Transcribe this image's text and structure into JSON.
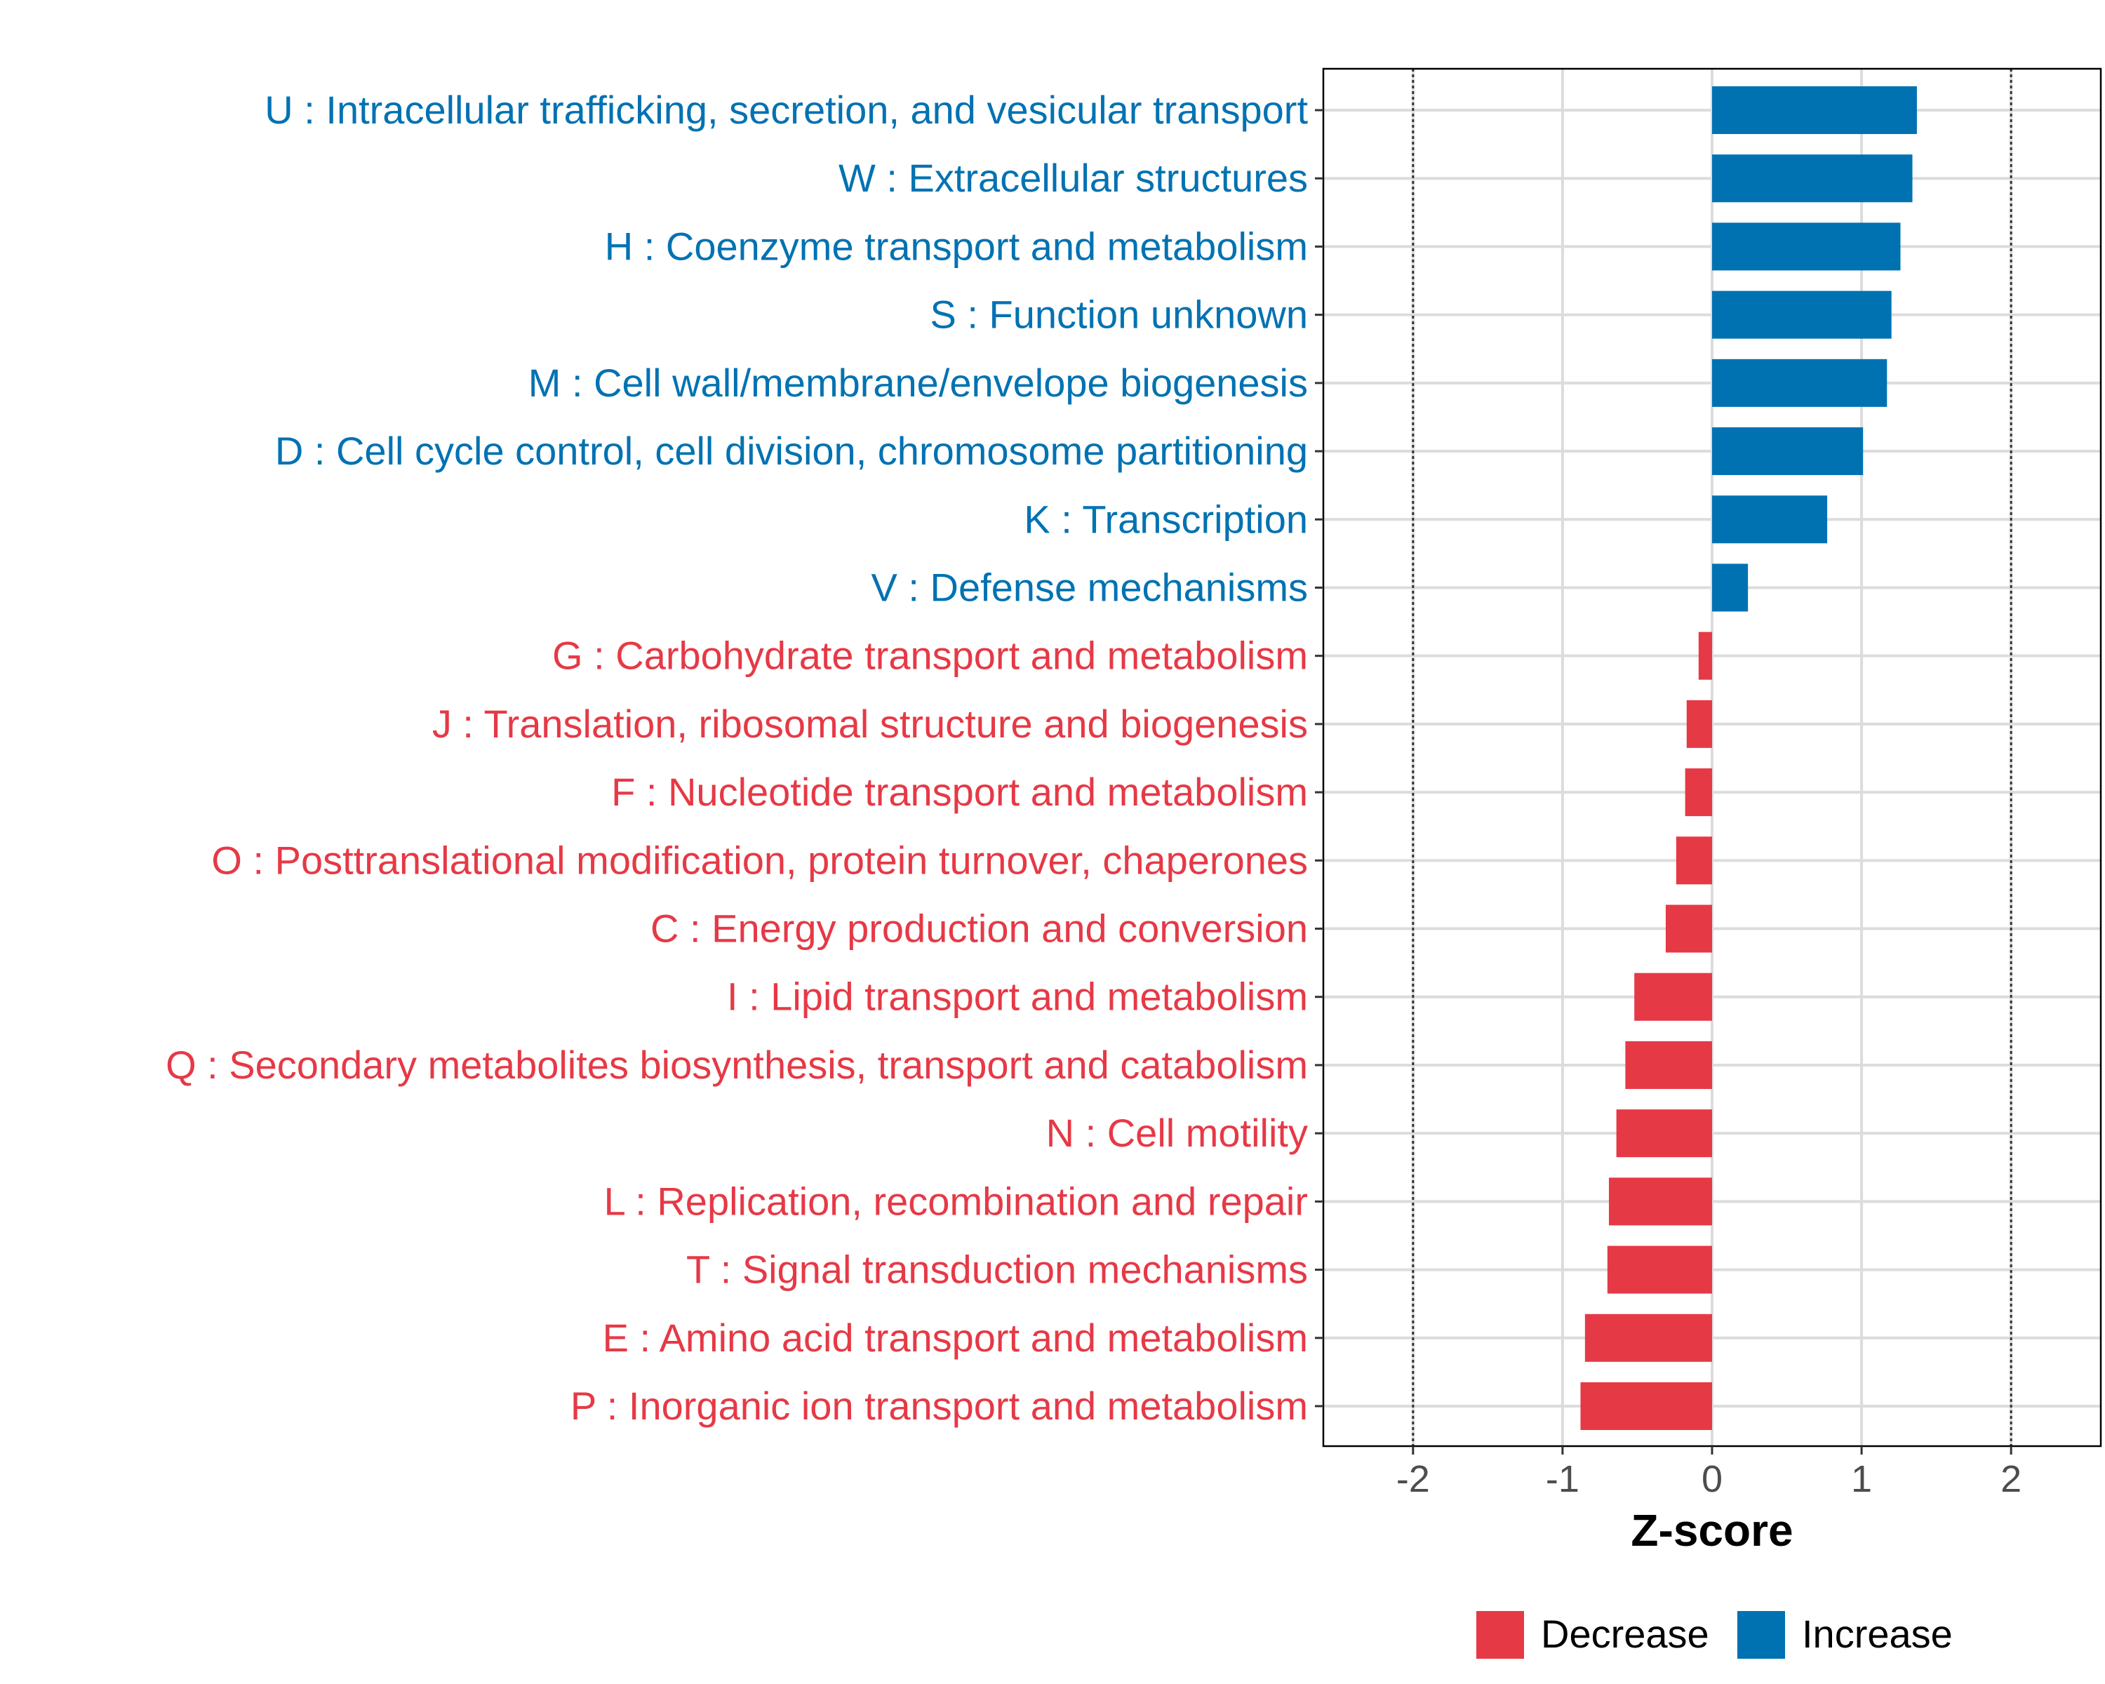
{
  "chart_data": {
    "type": "bar",
    "orientation": "horizontal",
    "title": "",
    "xlabel": "Z-score",
    "ylabel": "",
    "xlim": [
      -2.6,
      2.6
    ],
    "xticks": [
      -2,
      -1,
      0,
      1,
      2
    ],
    "xtick_labels": [
      "-2",
      "-1",
      "0",
      "1",
      "2"
    ],
    "reference_lines": [
      -2,
      2
    ],
    "grid": true,
    "legend_position": "bottom-right",
    "colors": {
      "Decrease": "#e63946",
      "Increase": "#0072b2"
    },
    "legend": [
      {
        "name": "Decrease",
        "color": "#e63946"
      },
      {
        "name": "Increase",
        "color": "#0072b2"
      }
    ],
    "categories": [
      "U : Intracellular trafficking, secretion, and vesicular transport",
      "W : Extracellular structures",
      "H : Coenzyme transport and metabolism",
      "S : Function unknown",
      "M : Cell wall/membrane/envelope biogenesis",
      "D : Cell cycle control, cell division, chromosome partitioning",
      "K : Transcription",
      "V : Defense mechanisms",
      "G : Carbohydrate transport and metabolism",
      "J : Translation, ribosomal structure and biogenesis",
      "F : Nucleotide transport and metabolism",
      "O : Posttranslational modification, protein turnover, chaperones",
      "C : Energy production and conversion",
      "I : Lipid transport and metabolism",
      "Q : Secondary metabolites biosynthesis, transport and catabolism",
      "N : Cell motility",
      "L : Replication, recombination and repair",
      "T : Signal transduction mechanisms",
      "E : Amino acid transport and metabolism",
      "P : Inorganic ion transport and metabolism"
    ],
    "values": [
      1.37,
      1.34,
      1.26,
      1.2,
      1.17,
      1.01,
      0.77,
      0.24,
      -0.09,
      -0.17,
      -0.18,
      -0.24,
      -0.31,
      -0.52,
      -0.58,
      -0.64,
      -0.69,
      -0.7,
      -0.85,
      -0.88
    ],
    "groups": [
      "Increase",
      "Increase",
      "Increase",
      "Increase",
      "Increase",
      "Increase",
      "Increase",
      "Increase",
      "Decrease",
      "Decrease",
      "Decrease",
      "Decrease",
      "Decrease",
      "Decrease",
      "Decrease",
      "Decrease",
      "Decrease",
      "Decrease",
      "Decrease",
      "Decrease"
    ]
  }
}
